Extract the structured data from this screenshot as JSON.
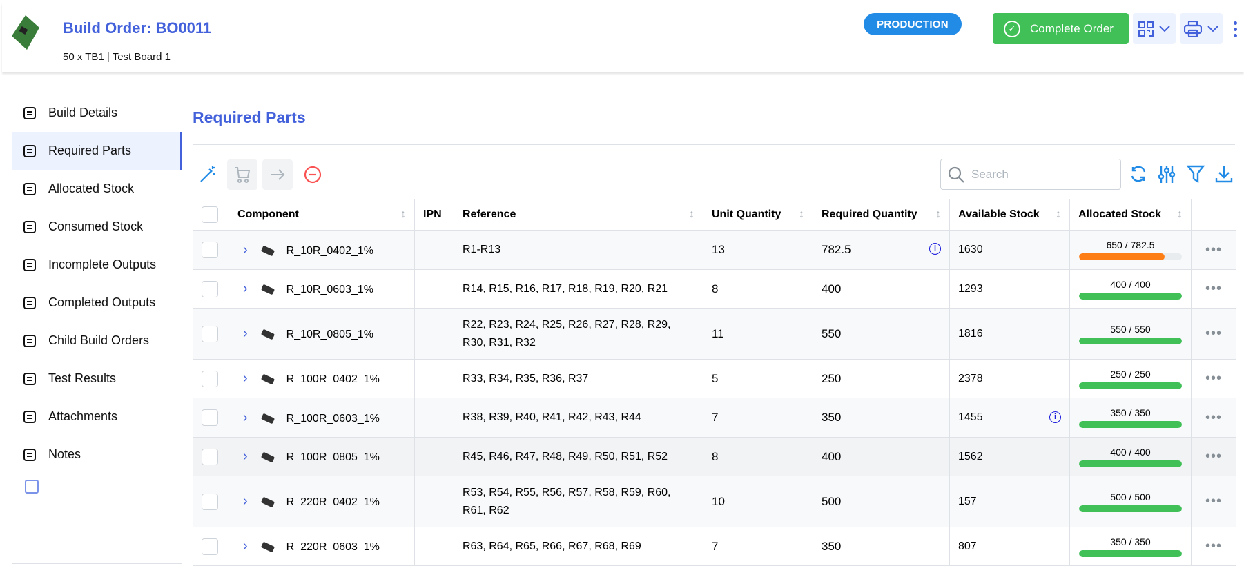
{
  "header": {
    "title": "Build Order: BO0011",
    "subtitle": "50 x TB1 | Test Board 1",
    "status": "PRODUCTION",
    "complete_label": "Complete Order"
  },
  "sidebar": {
    "items": [
      {
        "label": "Build Details",
        "icon": "info-circle-icon"
      },
      {
        "label": "Required Parts",
        "icon": "list-numbers-icon",
        "active": true
      },
      {
        "label": "Allocated Stock",
        "icon": "list-icon"
      },
      {
        "label": "Consumed Stock",
        "icon": "list-check-icon"
      },
      {
        "label": "Incomplete Outputs",
        "icon": "clipboard-list-icon"
      },
      {
        "label": "Completed Outputs",
        "icon": "clipboard-check-icon"
      },
      {
        "label": "Child Build Orders",
        "icon": "sitemap-icon"
      },
      {
        "label": "Test Results",
        "icon": "report-check-icon"
      },
      {
        "label": "Attachments",
        "icon": "paperclip-icon"
      },
      {
        "label": "Notes",
        "icon": "notes-icon"
      }
    ]
  },
  "main": {
    "title": "Required Parts",
    "search_placeholder": "Search"
  },
  "table": {
    "columns": [
      "Component",
      "IPN",
      "Reference",
      "Unit Quantity",
      "Required Quantity",
      "Available Stock",
      "Allocated Stock"
    ],
    "rows": [
      {
        "component": "R_10R_0402_1%",
        "ipn": "",
        "reference": "R1-R13",
        "unit": "13",
        "required": "782.5",
        "required_info": true,
        "available": "1630",
        "allocated": "650 / 782.5",
        "fraction": 0.831,
        "color": "#fd7e14"
      },
      {
        "component": "R_10R_0603_1%",
        "ipn": "",
        "reference": "R14, R15, R16, R17, R18, R19, R20, R21",
        "unit": "8",
        "required": "400",
        "available": "1293",
        "allocated": "400 / 400",
        "fraction": 1,
        "color": "#40c057"
      },
      {
        "component": "R_10R_0805_1%",
        "ipn": "",
        "reference": "R22, R23, R24, R25, R26, R27, R28, R29, R30, R31, R32",
        "unit": "11",
        "required": "550",
        "available": "1816",
        "allocated": "550 / 550",
        "fraction": 1,
        "color": "#40c057"
      },
      {
        "component": "R_100R_0402_1%",
        "ipn": "",
        "reference": "R33, R34, R35, R36, R37",
        "unit": "5",
        "required": "250",
        "available": "2378",
        "allocated": "250 / 250",
        "fraction": 1,
        "color": "#40c057"
      },
      {
        "component": "R_100R_0603_1%",
        "ipn": "",
        "reference": "R38, R39, R40, R41, R42, R43, R44",
        "unit": "7",
        "required": "350",
        "available": "1455",
        "available_info": true,
        "allocated": "350 / 350",
        "fraction": 1,
        "color": "#40c057"
      },
      {
        "component": "R_100R_0805_1%",
        "ipn": "",
        "reference": "R45, R46, R47, R48, R49, R50, R51, R52",
        "unit": "8",
        "required": "400",
        "available": "1562",
        "allocated": "400 / 400",
        "fraction": 1,
        "color": "#40c057"
      },
      {
        "component": "R_220R_0402_1%",
        "ipn": "",
        "reference": "R53, R54, R55, R56, R57, R58, R59, R60, R61, R62",
        "unit": "10",
        "required": "500",
        "available": "157",
        "allocated": "500 / 500",
        "fraction": 1,
        "color": "#40c057"
      },
      {
        "component": "R_220R_0603_1%",
        "ipn": "",
        "reference": "R63, R64, R65, R66, R67, R68, R69",
        "unit": "7",
        "required": "350",
        "available": "807",
        "allocated": "350 / 350",
        "fraction": 1,
        "color": "#40c057"
      }
    ]
  }
}
